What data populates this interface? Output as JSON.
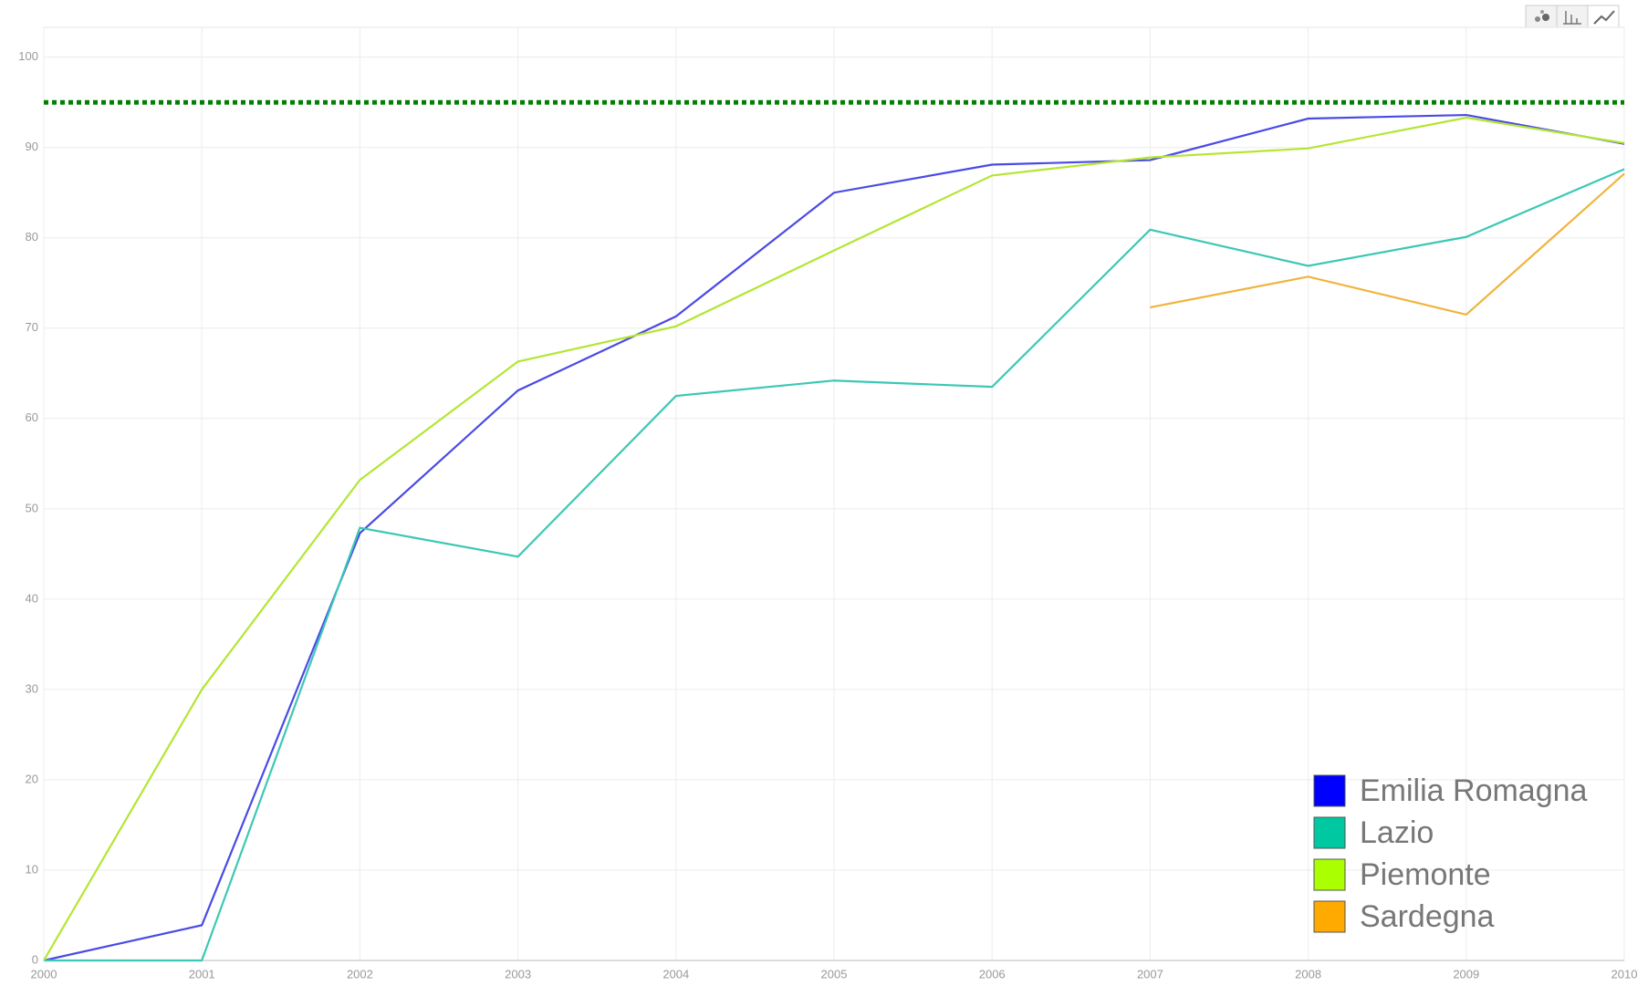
{
  "chart_data": {
    "type": "line",
    "x": [
      2000,
      2001,
      2002,
      2003,
      2004,
      2005,
      2006,
      2007,
      2008,
      2009,
      2010
    ],
    "xlim": [
      2000,
      2010
    ],
    "xticks": [
      2000,
      2001,
      2002,
      2003,
      2004,
      2005,
      2006,
      2007,
      2008,
      2009,
      2010
    ],
    "ylim": [
      0,
      103.3
    ],
    "yticks": [
      0,
      10,
      20,
      30,
      40,
      50,
      60,
      70,
      80,
      90,
      100
    ],
    "grid": true,
    "legend": "lower right",
    "reference_line": {
      "value": 95,
      "color": "#008000"
    },
    "series": [
      {
        "name": "Emilia Romagna",
        "color": "#0000ff",
        "line_color": "#4a4ae6",
        "values": [
          0,
          3.9,
          47.3,
          63.1,
          71.3,
          85,
          88.1,
          88.6,
          93.2,
          93.6,
          90.4
        ]
      },
      {
        "name": "Lazio",
        "color": "#00c8a0",
        "line_color": "#3cc8b4",
        "values": [
          0,
          0,
          47.9,
          44.7,
          62.5,
          64.2,
          63.5,
          80.9,
          76.9,
          80.1,
          87.6
        ]
      },
      {
        "name": "Piemonte",
        "color": "#aaff00",
        "line_color": "#b4e632",
        "values": [
          0,
          30,
          53.2,
          66.3,
          70.2,
          78.6,
          86.9,
          88.9,
          89.9,
          93.3,
          90.5
        ]
      },
      {
        "name": "Sardegna",
        "color": "#ffaa00",
        "line_color": "#f0b43c",
        "values": [
          null,
          null,
          null,
          null,
          null,
          null,
          null,
          72.3,
          75.7,
          71.5,
          87.1
        ]
      }
    ]
  }
}
